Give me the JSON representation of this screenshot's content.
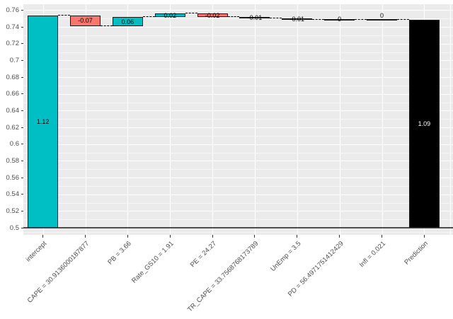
{
  "chart_data": {
    "type": "bar",
    "subtype": "waterfall",
    "title": "",
    "xlabel": "",
    "ylabel": "",
    "ylim": [
      0.488,
      0.767
    ],
    "grid": true,
    "legend": "none",
    "y_axis": {
      "tick_labels": [
        "0.76",
        "0.74",
        "0.72",
        "0.7",
        "0.68",
        "0.66",
        "0.64",
        "0.62",
        "0.6",
        "0.58",
        "0.56",
        "0.54",
        "0.52",
        "0.5"
      ],
      "tick_values": [
        0.76,
        0.74,
        0.72,
        0.7,
        0.68,
        0.66,
        0.64,
        0.62,
        0.6,
        0.58,
        0.56,
        0.54,
        0.52,
        0.5
      ]
    },
    "categories": [
      "intercept",
      "CAPE = 30.9136000187877",
      "PB = 3.66",
      "Rate_GS10 = 1.91",
      "PE = 24.27",
      "TR_CAPE = 33.7568768173789",
      "UnEmp = 3.5",
      "PD = 56.4971751412429",
      "Infl = 0.021",
      "Prediction"
    ],
    "bars": [
      {
        "category": "intercept",
        "label": "1.12",
        "start": 0.5,
        "end": 0.754,
        "kind": "increase",
        "label_pos": "center"
      },
      {
        "category": "CAPE = 30.9136000187877",
        "label": "-0.07",
        "start": 0.754,
        "end": 0.7407,
        "kind": "decrease",
        "label_pos": "center"
      },
      {
        "category": "PB = 3.66",
        "label": "0.06",
        "start": 0.7407,
        "end": 0.7521,
        "kind": "increase",
        "label_pos": "center"
      },
      {
        "category": "Rate_GS10 = 1.91",
        "label": "0.02",
        "start": 0.7521,
        "end": 0.7558,
        "kind": "increase",
        "label_pos": "center"
      },
      {
        "category": "PE = 24.27",
        "label": "-0.02",
        "start": 0.7558,
        "end": 0.7521,
        "kind": "decrease",
        "label_pos": "center"
      },
      {
        "category": "TR_CAPE = 33.7568768173789",
        "label": "-0.01",
        "start": 0.7521,
        "end": 0.7503,
        "kind": "decrease",
        "label_pos": "center"
      },
      {
        "category": "UnEmp = 3.5",
        "label": "-0.01",
        "start": 0.7503,
        "end": 0.7484,
        "kind": "decrease",
        "label_pos": "center"
      },
      {
        "category": "PD = 56.4971751412429",
        "label": "0",
        "start": 0.7484,
        "end": 0.7484,
        "kind": "zero",
        "label_pos": "center"
      },
      {
        "category": "Infl = 0.021",
        "label": "0",
        "start": 0.7484,
        "end": 0.7484,
        "kind": "zero",
        "label_pos": "above"
      },
      {
        "category": "Prediction",
        "label": "1.09",
        "start": 0.5,
        "end": 0.7484,
        "kind": "total",
        "label_pos": "center"
      }
    ],
    "colors": {
      "increase": "#00BFC4",
      "decrease": "#F8766D",
      "total": "#000000",
      "zero_bar": "#1A1A1A",
      "bar_border": "#1A1A1A",
      "panel": "#EBEBEB",
      "grid_major": "#FFFFFF",
      "grid_minor": "#F6F6F6",
      "baseline": "#4D4D4D",
      "axis_text": "#4D4D4D",
      "connector": "#000000",
      "label_default": "#000000",
      "label_on_total": "#FFFFFF"
    }
  }
}
